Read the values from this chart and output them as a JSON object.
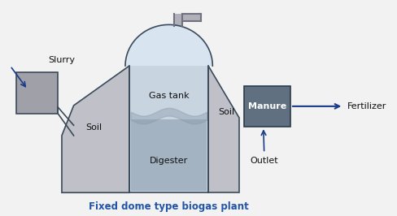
{
  "bg_color": "#f2f2f2",
  "title": "Fixed dome type biogas plant",
  "title_color": "#2255aa",
  "title_fontsize": 8.5,
  "labels": {
    "slurry": "Slurry",
    "gas_tank": "Gas tank",
    "digester": "Digester",
    "soil_left": "Soil",
    "soil_right": "Soil",
    "manure": "Manure",
    "outlet": "Outlet",
    "fertilizer": "Fertilizer"
  },
  "font_size": 8,
  "tank_fill": "#c8d4e0",
  "dome_fill": "#d8e4f0",
  "digester_fill": "#8899aa",
  "soil_fill": "#c0c0c8",
  "slurry_fill": "#a0a0a8",
  "manure_fill": "#607080",
  "pipe_color": "#707080",
  "edge_color": "#3a4a5a",
  "text_color": "#111111",
  "arrow_color": "#1a3a8a"
}
